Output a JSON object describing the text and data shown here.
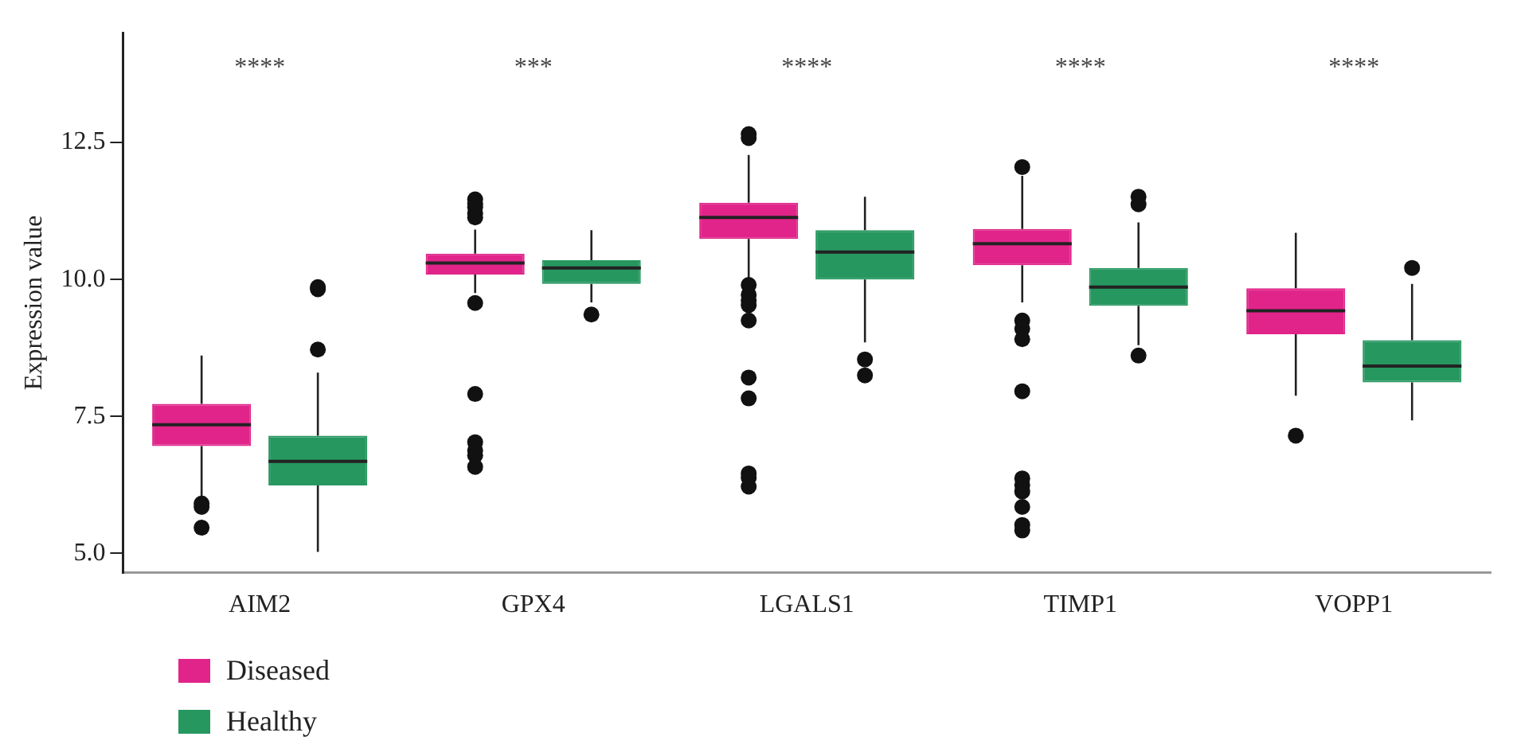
{
  "chart_data": {
    "type": "box",
    "ylabel": "Expression value",
    "categories": [
      "AIM2",
      "GPX4",
      "LGALS1",
      "TIMP1",
      "VOPP1"
    ],
    "ylim": [
      4.65,
      14.5
    ],
    "yticks": [
      {
        "value": 5,
        "label": "5.0"
      },
      {
        "value": 7.5,
        "label": "7.5"
      },
      {
        "value": 10,
        "label": "10.0"
      },
      {
        "value": 12.5,
        "label": "12.5"
      }
    ],
    "grid": false,
    "legend": "bottom left",
    "annotations": [
      "****",
      "***",
      "****",
      "****",
      "****"
    ],
    "series": [
      {
        "name": "Diseased",
        "color": "#e0248a",
        "boxes": [
          {
            "low": 6.05,
            "q1": 6.96,
            "median": 7.35,
            "q3": 7.73,
            "high": 8.61,
            "outliers": [
              5.91,
              5.85,
              5.47
            ]
          },
          {
            "low": 9.75,
            "q1": 10.09,
            "median": 10.3,
            "q3": 10.47,
            "high": 10.91,
            "outliers": [
              11.46,
              11.38,
              11.32,
              11.2,
              11.13,
              9.57,
              7.91,
              7.03,
              6.88,
              6.79,
              6.58
            ]
          },
          {
            "low": 10.0,
            "q1": 10.74,
            "median": 11.13,
            "q3": 11.4,
            "high": 12.27,
            "outliers": [
              12.65,
              12.58,
              9.9,
              9.72,
              9.62,
              9.53,
              9.25,
              8.21,
              7.83,
              6.46,
              6.38,
              6.22
            ]
          },
          {
            "low": 9.58,
            "q1": 10.26,
            "median": 10.65,
            "q3": 10.92,
            "high": 11.89,
            "outliers": [
              12.05,
              9.25,
              9.1,
              8.91,
              7.96,
              6.37,
              6.25,
              6.13,
              5.85,
              5.52,
              5.42
            ]
          },
          {
            "low": 7.88,
            "q1": 9.0,
            "median": 9.43,
            "q3": 9.84,
            "high": 10.85,
            "outliers": [
              7.15
            ]
          }
        ]
      },
      {
        "name": "Healthy",
        "color": "#26975f",
        "boxes": [
          {
            "low": 5.03,
            "q1": 6.24,
            "median": 6.68,
            "q3": 7.15,
            "high": 8.3,
            "outliers": [
              9.86,
              9.82,
              8.72
            ]
          },
          {
            "low": 9.58,
            "q1": 9.92,
            "median": 10.21,
            "q3": 10.35,
            "high": 10.9,
            "outliers": [
              9.36
            ]
          },
          {
            "low": 8.85,
            "q1": 10.0,
            "median": 10.5,
            "q3": 10.9,
            "high": 11.51,
            "outliers": [
              8.54,
              8.25
            ]
          },
          {
            "low": 8.8,
            "q1": 9.52,
            "median": 9.86,
            "q3": 10.21,
            "high": 11.04,
            "outliers": [
              11.51,
              11.37,
              8.61
            ]
          },
          {
            "low": 7.43,
            "q1": 8.12,
            "median": 8.42,
            "q3": 8.89,
            "high": 9.92,
            "outliers": [
              10.21
            ]
          }
        ]
      }
    ]
  }
}
